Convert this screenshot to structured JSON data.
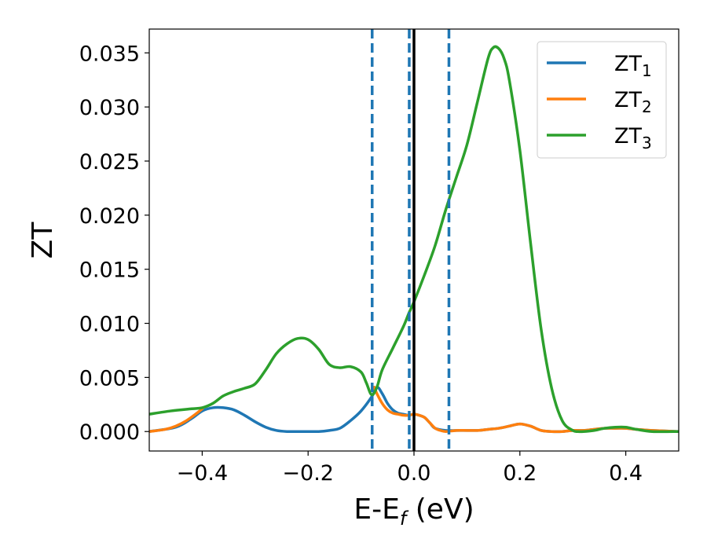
{
  "chart_data": {
    "type": "line",
    "xlabel": "E-E_f (eV)",
    "xlabel_parts": {
      "main": "E-E",
      "sub": "f",
      "unit": " (eV)"
    },
    "ylabel": "ZT",
    "xlim": [
      -0.5,
      0.5
    ],
    "ylim": [
      -0.0018,
      0.0372
    ],
    "xticks": [
      -0.4,
      -0.2,
      0.0,
      0.2,
      0.4
    ],
    "xtick_labels": [
      "−0.4",
      "−0.2",
      "0.0",
      "0.2",
      "0.4"
    ],
    "yticks": [
      0.0,
      0.005,
      0.01,
      0.015,
      0.02,
      0.025,
      0.03,
      0.035
    ],
    "ytick_labels": [
      "0.000",
      "0.005",
      "0.010",
      "0.015",
      "0.020",
      "0.025",
      "0.030",
      "0.035"
    ],
    "grid": false,
    "legend_position": "top-right",
    "vlines": [
      {
        "x": -0.079,
        "style": "dashed",
        "color": "#1f77b4"
      },
      {
        "x": -0.009,
        "style": "dashed",
        "color": "#1f77b4"
      },
      {
        "x": 0.0,
        "style": "solid",
        "color": "#000000"
      },
      {
        "x": 0.066,
        "style": "dashed",
        "color": "#1f77b4"
      }
    ],
    "series": [
      {
        "name": "ZT",
        "name_sub": "1",
        "color": "#1f77b4",
        "x": [
          -0.5,
          -0.45,
          -0.42,
          -0.4,
          -0.38,
          -0.36,
          -0.34,
          -0.32,
          -0.3,
          -0.28,
          -0.26,
          -0.24,
          -0.22,
          -0.2,
          -0.18,
          -0.16,
          -0.14,
          -0.12,
          -0.1,
          -0.08,
          -0.07,
          -0.06,
          -0.05,
          -0.04,
          -0.03,
          -0.02,
          -0.01,
          0.0,
          0.01,
          0.02,
          0.03,
          0.04,
          0.06,
          0.08,
          0.1,
          0.12,
          0.14,
          0.16,
          0.18,
          0.2,
          0.22,
          0.24,
          0.26,
          0.28,
          0.3,
          0.32,
          0.34,
          0.36,
          0.38,
          0.4,
          0.42,
          0.45,
          0.5
        ],
        "y": [
          0.0,
          0.0004,
          0.0012,
          0.0019,
          0.0022,
          0.0022,
          0.002,
          0.0015,
          0.0009,
          0.0004,
          0.0001,
          0.0,
          0.0,
          0.0,
          0.0,
          0.0001,
          0.0003,
          0.001,
          0.0019,
          0.0032,
          0.0041,
          0.0035,
          0.0026,
          0.002,
          0.0017,
          0.0016,
          0.0015,
          0.0016,
          0.0015,
          0.0013,
          0.0008,
          0.0003,
          0.0001,
          0.0001,
          0.0001,
          0.0001,
          0.0002,
          0.0003,
          0.0005,
          0.0007,
          0.0005,
          0.0001,
          0.0,
          0.0,
          0.0001,
          0.0001,
          0.0002,
          0.0003,
          0.0003,
          0.0003,
          0.0002,
          0.0001,
          0.0
        ]
      },
      {
        "name": "ZT",
        "name_sub": "2",
        "color": "#ff7f0e",
        "x": [
          -0.5,
          -0.47,
          -0.45,
          -0.43,
          -0.41,
          -0.4,
          -0.38,
          -0.36,
          -0.34,
          -0.3,
          -0.2,
          -0.1,
          -0.09,
          -0.08,
          -0.075,
          -0.07,
          -0.06,
          -0.05,
          -0.04,
          -0.03,
          -0.02,
          -0.01,
          0.0,
          0.01,
          0.02,
          0.03,
          0.04,
          0.05,
          0.06,
          0.08,
          0.1,
          0.12,
          0.14,
          0.16,
          0.18,
          0.2,
          0.22,
          0.24,
          0.26,
          0.28,
          0.3,
          0.32,
          0.34,
          0.36,
          0.38,
          0.4,
          0.42,
          0.45,
          0.5
        ],
        "y": [
          0.0,
          0.0002,
          0.0005,
          0.001,
          0.0017,
          0.0021,
          null,
          null,
          null,
          null,
          null,
          null,
          null,
          null,
          0.0041,
          0.0035,
          0.0026,
          0.002,
          0.0017,
          0.0016,
          0.0015,
          0.0015,
          0.0016,
          0.0015,
          0.0013,
          0.0008,
          0.0003,
          0.0001,
          0.0,
          0.0001,
          0.0001,
          0.0001,
          0.0002,
          0.0003,
          0.0005,
          0.0007,
          0.0005,
          0.0001,
          0.0,
          0.0,
          0.0001,
          0.0001,
          0.0002,
          0.0003,
          0.0003,
          0.0003,
          0.0002,
          0.0001,
          0.0
        ]
      },
      {
        "name": "ZT",
        "name_sub": "3",
        "color": "#2ca02c",
        "x": [
          -0.5,
          -0.46,
          -0.42,
          -0.4,
          -0.38,
          -0.36,
          -0.34,
          -0.32,
          -0.3,
          -0.28,
          -0.26,
          -0.24,
          -0.22,
          -0.2,
          -0.18,
          -0.16,
          -0.14,
          -0.12,
          -0.1,
          -0.09,
          -0.08,
          -0.07,
          -0.06,
          -0.04,
          -0.02,
          -0.01,
          0.0,
          0.02,
          0.04,
          0.06,
          0.08,
          0.1,
          0.12,
          0.14,
          0.15,
          0.16,
          0.17,
          0.18,
          0.2,
          0.22,
          0.24,
          0.26,
          0.28,
          0.3,
          0.31,
          0.32,
          0.34,
          0.36,
          0.38,
          0.4,
          0.42,
          0.45,
          0.5
        ],
        "y": [
          0.0016,
          0.0019,
          0.0021,
          0.0022,
          0.0026,
          0.0033,
          0.0037,
          0.004,
          0.0044,
          0.0057,
          0.0072,
          0.0081,
          0.0086,
          0.0085,
          0.0076,
          0.0062,
          0.0059,
          0.006,
          0.0055,
          0.0045,
          0.0034,
          0.0041,
          0.0057,
          0.0077,
          0.0097,
          0.0109,
          0.012,
          0.0145,
          0.0172,
          0.0205,
          0.0235,
          0.0265,
          0.0305,
          0.0345,
          0.0355,
          0.0354,
          0.0345,
          0.0325,
          0.026,
          0.0175,
          0.0095,
          0.004,
          0.001,
          0.0001,
          0.0,
          0.0,
          0.0001,
          0.0003,
          0.0004,
          0.0004,
          0.0002,
          0.0,
          0.0
        ]
      }
    ]
  }
}
